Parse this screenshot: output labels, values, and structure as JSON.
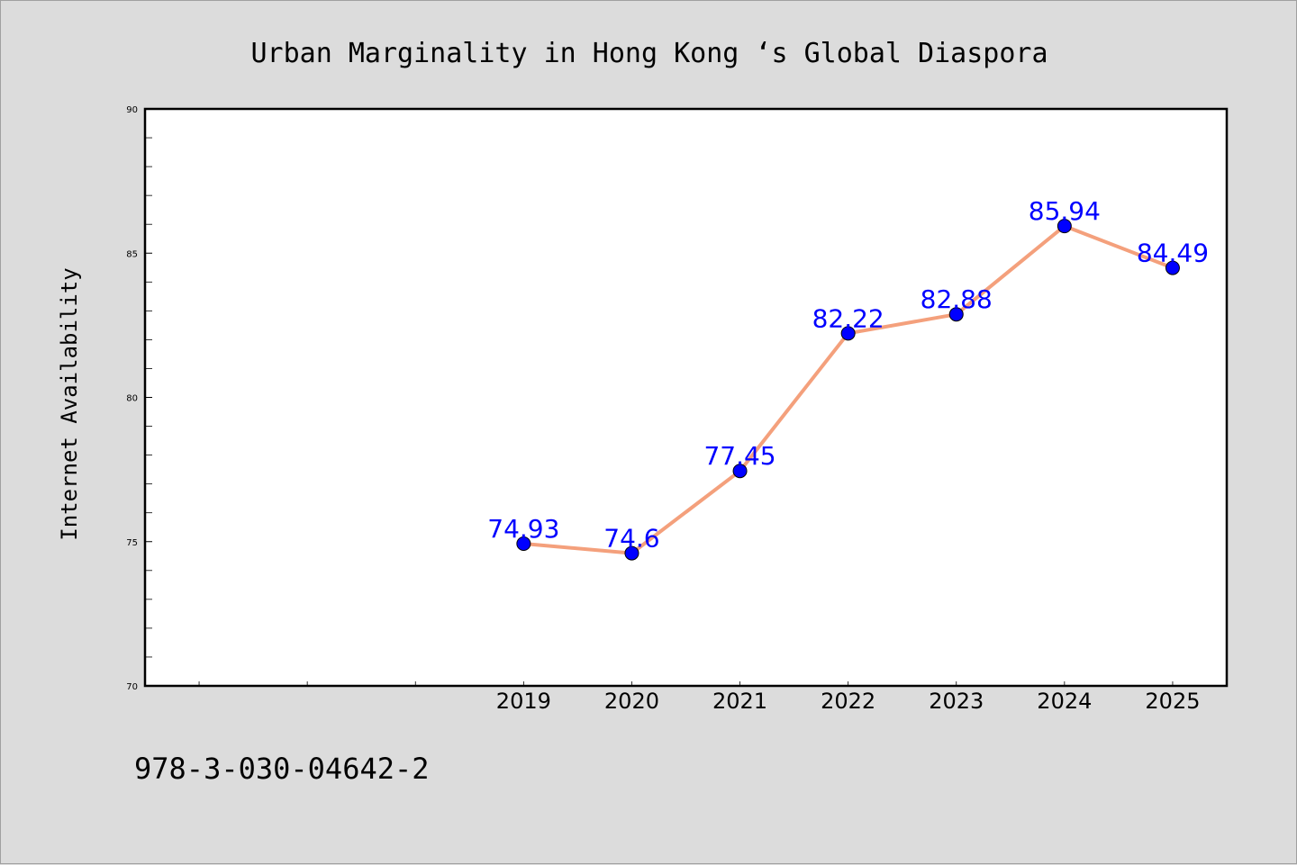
{
  "chart_data": {
    "type": "line",
    "title": "Urban Marginality in Hong Kong ‘s Global Diaspora",
    "ylabel": "Internet Availability",
    "xlabel": "",
    "x": [
      "2019",
      "2020",
      "2021",
      "2022",
      "2023",
      "2024",
      "2025"
    ],
    "series": [
      {
        "values": [
          74.93,
          74.6,
          77.45,
          82.22,
          82.88,
          85.94,
          84.49
        ],
        "labels": [
          "74.93",
          "74.6",
          "77.45",
          "82.22",
          "82.88",
          "85.94",
          "84.49"
        ]
      }
    ],
    "ylim": [
      70,
      90
    ],
    "yticks": [
      "70",
      "75",
      "80",
      "85",
      "90"
    ],
    "x_index_range": [
      -3.5,
      6.5
    ],
    "grid": false,
    "legend": "none"
  },
  "colors": {
    "line": "#f4a07c",
    "marker": "#0000ff",
    "data_label": "#0000ff",
    "background": "#dcdcdc",
    "plot_area": "#ffffff"
  },
  "footer": {
    "code": "978-3-030-04642-2"
  }
}
